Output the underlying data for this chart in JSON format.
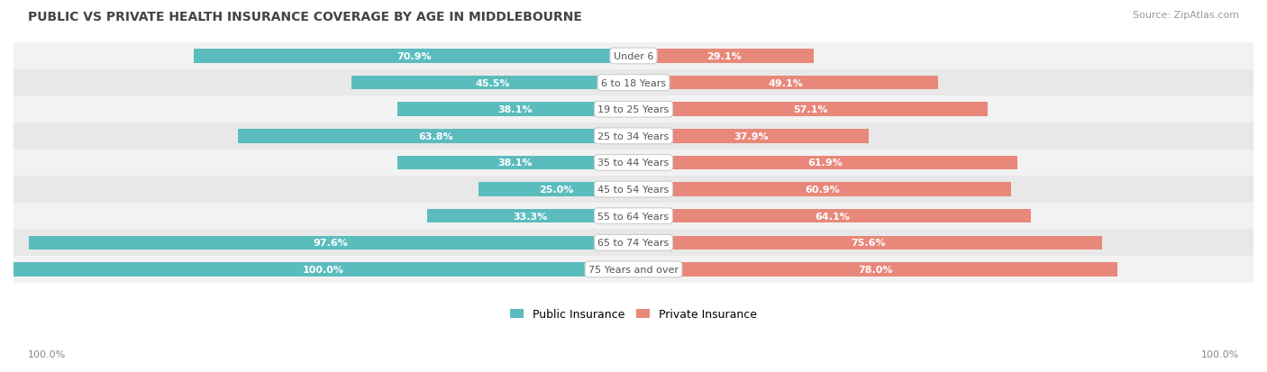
{
  "title": "PUBLIC VS PRIVATE HEALTH INSURANCE COVERAGE BY AGE IN MIDDLEBOURNE",
  "source": "Source: ZipAtlas.com",
  "categories": [
    "Under 6",
    "6 to 18 Years",
    "19 to 25 Years",
    "25 to 34 Years",
    "35 to 44 Years",
    "45 to 54 Years",
    "55 to 64 Years",
    "65 to 74 Years",
    "75 Years and over"
  ],
  "public": [
    70.9,
    45.5,
    38.1,
    63.8,
    38.1,
    25.0,
    33.3,
    97.6,
    100.0
  ],
  "private": [
    29.1,
    49.1,
    57.1,
    37.9,
    61.9,
    60.9,
    64.1,
    75.6,
    78.0
  ],
  "public_color": "#5bbcbe",
  "private_color": "#e8887a",
  "row_bg_even": "#f2f2f2",
  "row_bg_odd": "#e8e8e8",
  "label_color_inside": "#ffffff",
  "label_color_outside": "#888888",
  "center_label_color": "#555555",
  "title_color": "#444444",
  "source_color": "#999999",
  "max_value": 100.0,
  "bar_height": 0.52,
  "legend_labels": [
    "Public Insurance",
    "Private Insurance"
  ],
  "bottom_label": "100.0%"
}
